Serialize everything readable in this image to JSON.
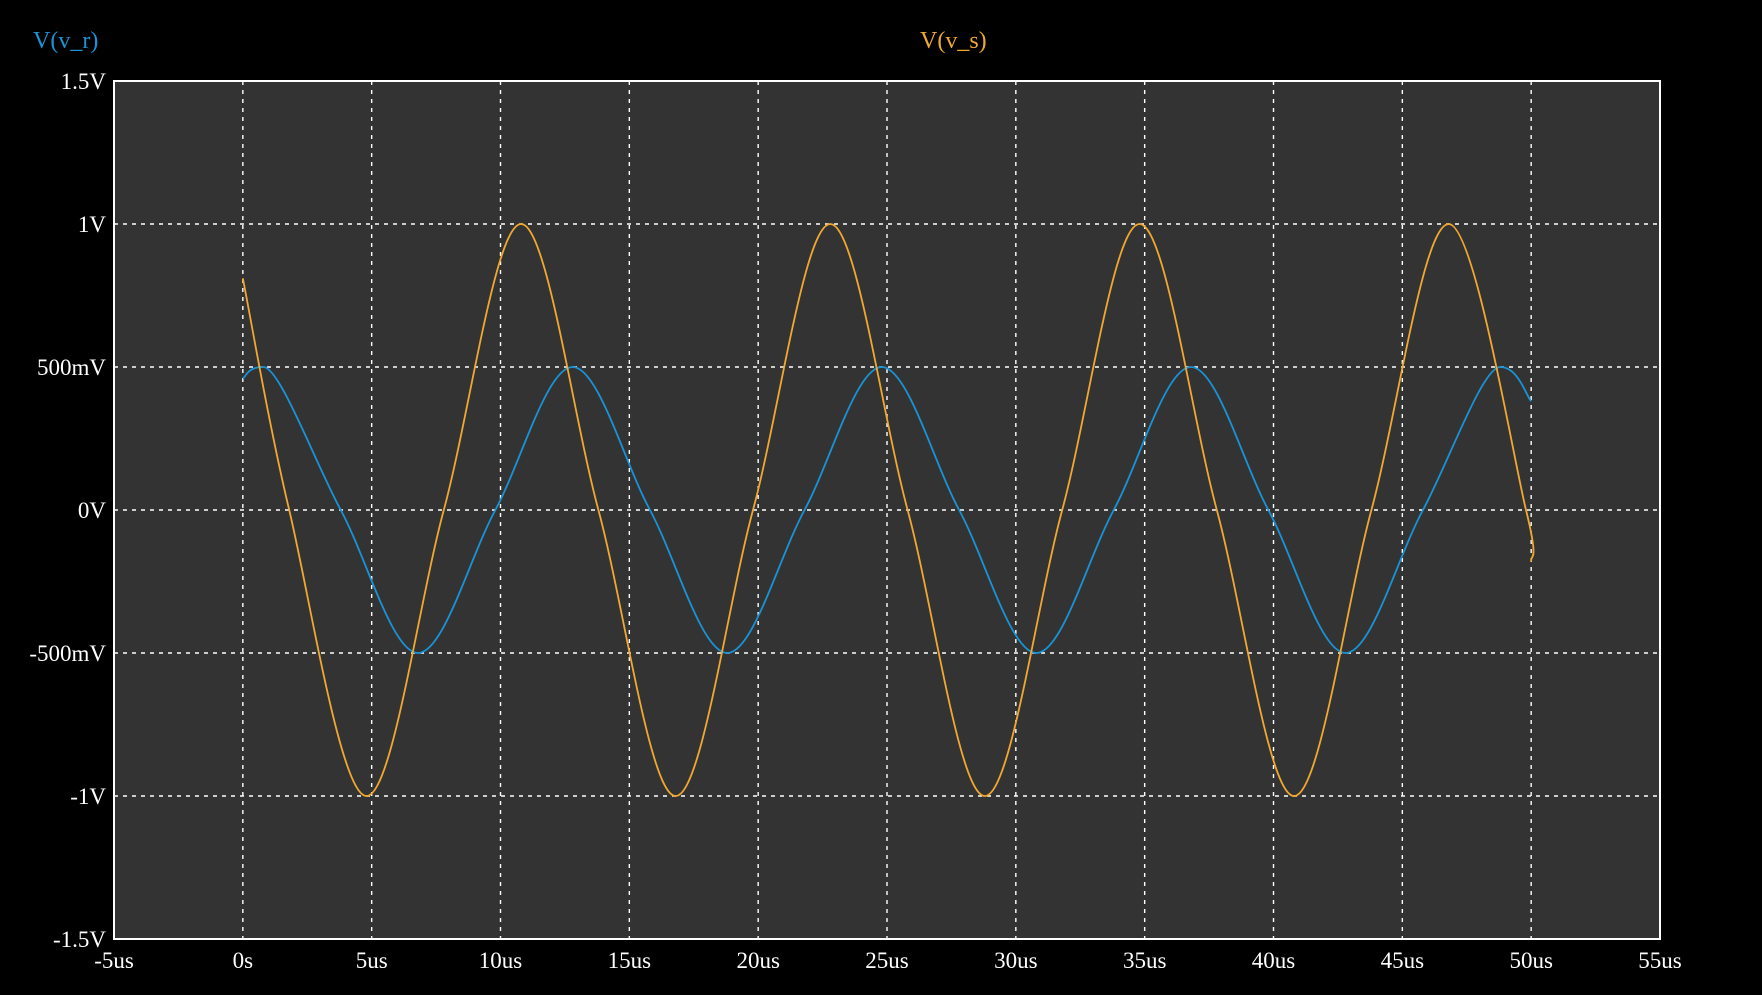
{
  "chart_data": {
    "type": "line",
    "title": "",
    "xlabel": "",
    "ylabel": "",
    "xlim": [
      -5,
      55
    ],
    "ylim": [
      -1.5,
      1.5
    ],
    "x_unit": "us",
    "y_unit": "V",
    "x_ticks": [
      -5,
      0,
      5,
      10,
      15,
      20,
      25,
      30,
      35,
      40,
      45,
      50,
      55
    ],
    "x_tick_labels": [
      "-5us",
      "0s",
      "5us",
      "10us",
      "15us",
      "20us",
      "25us",
      "30us",
      "35us",
      "40us",
      "45us",
      "50us",
      "55us"
    ],
    "y_ticks": [
      1.5,
      1,
      0.5,
      0,
      -0.5,
      -1,
      -1.5
    ],
    "y_tick_labels": [
      "1.5V",
      "1V",
      "500mV",
      "0V",
      "-500mV",
      "-1V",
      "-1.5V"
    ],
    "grid": true,
    "background": "#333333",
    "series": [
      {
        "name": "V(v_r)",
        "color": "#1a93d6",
        "x": [
          0,
          0.8,
          3.8,
          6.8,
          9.8,
          12.8,
          15.8,
          18.8,
          21.8,
          24.8,
          27.8,
          30.8,
          33.8,
          36.8,
          39.8,
          42.8,
          45.8,
          48.8,
          50
        ],
        "y": [
          0.46,
          0.5,
          0,
          -0.5,
          0,
          0.5,
          0,
          -0.5,
          0,
          0.5,
          0,
          -0.5,
          0,
          0.5,
          0,
          -0.5,
          0,
          0.5,
          0.38
        ]
      },
      {
        "name": "V(v_s)",
        "color": "#f0a830",
        "x": [
          0,
          1.8,
          4.8,
          7.8,
          10.8,
          13.8,
          16.8,
          19.8,
          22.8,
          25.8,
          28.8,
          31.8,
          34.8,
          37.8,
          40.8,
          43.8,
          46.8,
          49.8,
          50
        ],
        "y": [
          0.81,
          0,
          -1,
          0,
          1,
          0,
          -1,
          0,
          1,
          0,
          -1,
          0,
          1,
          0,
          -1,
          0,
          1,
          0,
          -0.18
        ]
      }
    ]
  }
}
